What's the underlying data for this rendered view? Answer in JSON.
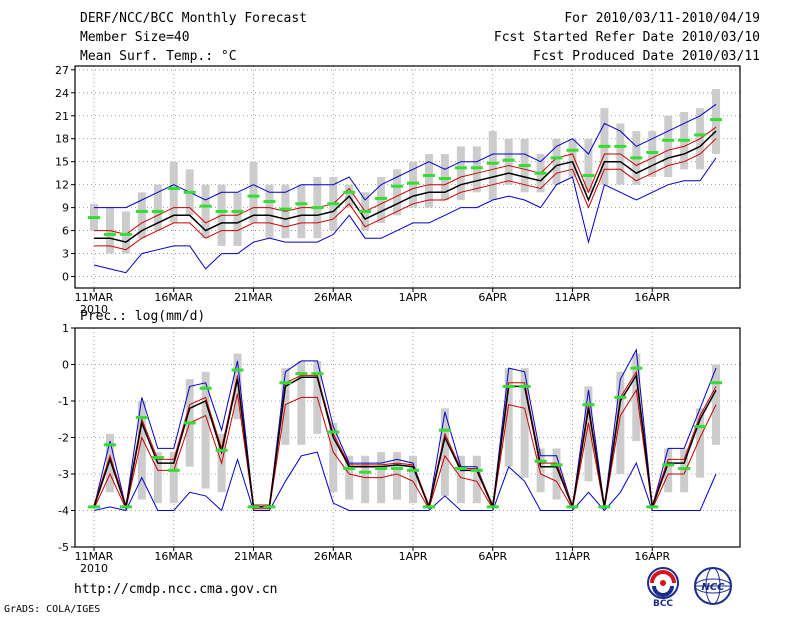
{
  "header": {
    "title": "DERF/NCC/BCC Monthly Forecast",
    "member_size": "Member Size=40",
    "variable": "Mean Surf. Temp.: °C",
    "period": "For 2010/03/11-2010/04/19",
    "started": "Fcst Started Refer Date 2010/03/10",
    "produced": "Fcst Produced Date 2010/03/11"
  },
  "footer": {
    "url": "http://cmdp.ncc.cma.gov.cn",
    "credit": "GrADS: COLA/IGES",
    "logo_bcc": "BCC",
    "logo_ncc": "NCC"
  },
  "colors": {
    "mean": "#000000",
    "outer": "#0000cc",
    "inner": "#cc0000",
    "box": "#cccccc",
    "median": "#33dd33"
  },
  "chart_data": [
    {
      "type": "line",
      "title": "Mean Surf. Temp.: °C",
      "ylim": [
        -1.5,
        27.5
      ],
      "yticks": [
        0,
        3,
        6,
        9,
        12,
        15,
        18,
        21,
        24,
        27
      ],
      "xlabels": [
        "11MAR",
        "16MAR",
        "21MAR",
        "26MAR",
        "1APR",
        "6APR",
        "11APR",
        "16APR"
      ],
      "year_label": "2010",
      "series": [
        {
          "name": "mean",
          "values": [
            5,
            5,
            4.5,
            6,
            7,
            8,
            8,
            6,
            7,
            7,
            8,
            8,
            7.5,
            8,
            8,
            8.5,
            10.5,
            7.5,
            8.5,
            9.5,
            10.5,
            11,
            11,
            12,
            12.5,
            13,
            13.5,
            13,
            12.5,
            14.5,
            15,
            10,
            15,
            15,
            13.5,
            14.5,
            15.5,
            16,
            17,
            19
          ]
        },
        {
          "name": "upper_inner",
          "values": [
            6,
            6,
            5.5,
            7,
            8,
            9,
            9,
            7,
            8,
            8,
            9,
            9,
            8.5,
            9,
            9,
            9.5,
            11.5,
            8.5,
            9.5,
            10.5,
            11.5,
            12,
            12,
            13,
            13.5,
            14,
            14.5,
            14,
            13.5,
            15.5,
            16,
            11,
            16,
            16,
            14.5,
            15.5,
            16.5,
            17,
            18,
            19.5
          ]
        },
        {
          "name": "lower_inner",
          "values": [
            4,
            4,
            3.5,
            5,
            6,
            7,
            7,
            5,
            6,
            6,
            7,
            7,
            6.5,
            7,
            7,
            7.5,
            9.5,
            6.5,
            7.5,
            8.5,
            9.5,
            10,
            10,
            11,
            11.5,
            12,
            12.5,
            12,
            11.5,
            13.5,
            14,
            9,
            14,
            14,
            12.5,
            13.5,
            14.5,
            15,
            16,
            18
          ]
        },
        {
          "name": "upper_outer",
          "values": [
            9,
            9,
            9,
            10,
            11,
            12,
            11,
            10,
            11,
            11,
            12,
            11,
            11,
            12,
            12,
            12,
            13,
            10,
            12,
            13,
            14,
            15,
            14,
            15,
            15,
            16,
            16,
            16,
            15,
            17,
            18,
            16,
            20,
            19,
            17,
            18,
            19,
            20,
            21,
            22.5
          ]
        },
        {
          "name": "lower_outer",
          "values": [
            1.5,
            1,
            0.5,
            3,
            3.5,
            4,
            4,
            1,
            3,
            3,
            4.5,
            5,
            4.5,
            4.5,
            4.5,
            5.5,
            8,
            5,
            5,
            6,
            7,
            7,
            8,
            9,
            9,
            10,
            10.5,
            10,
            9,
            12,
            13,
            4.5,
            12,
            11,
            10,
            11,
            12,
            12.5,
            12.5,
            15.5
          ]
        },
        {
          "name": "box_top",
          "values": [
            9.5,
            9,
            8.5,
            11,
            12,
            15,
            14,
            12,
            12,
            11,
            15,
            12,
            12,
            12,
            13,
            13,
            12,
            11,
            13,
            14,
            15,
            16,
            16,
            17,
            17,
            19,
            18,
            18,
            16,
            18,
            18,
            18,
            22,
            20,
            19,
            19,
            21,
            21.5,
            22,
            24.5
          ]
        },
        {
          "name": "box_bottom",
          "values": [
            6,
            3,
            3,
            5,
            6,
            7,
            8,
            5,
            4,
            4,
            7,
            5,
            5,
            5,
            5,
            6,
            9,
            6,
            7,
            8,
            9,
            9,
            10,
            10,
            11,
            10,
            12,
            11,
            11,
            12,
            13,
            11,
            12,
            12,
            12,
            13,
            13,
            14,
            14,
            16
          ]
        },
        {
          "name": "median",
          "values": [
            7.7,
            5.5,
            5.5,
            8.5,
            8.5,
            11.5,
            11,
            9.2,
            8.5,
            8.5,
            10.5,
            9.8,
            8.8,
            9.5,
            9,
            9.5,
            11,
            8.5,
            10.2,
            11.8,
            12.2,
            13.2,
            12.8,
            14.2,
            14.2,
            14.8,
            15.2,
            14.5,
            13.5,
            15.5,
            16.5,
            13.2,
            17,
            17,
            15.5,
            16.2,
            17.8,
            17.8,
            18.5,
            20.5
          ]
        }
      ]
    },
    {
      "type": "line",
      "title": "Prec.: log(mm/d)",
      "ylim": [
        -5,
        1
      ],
      "yticks": [
        1,
        0,
        -1,
        -2,
        -3,
        -4,
        -5
      ],
      "xlabels": [
        "11MAR",
        "16MAR",
        "21MAR",
        "26MAR",
        "1APR",
        "6APR",
        "11APR",
        "16APR"
      ],
      "year_label": "2010",
      "series": [
        {
          "name": "mean",
          "values": [
            -3.9,
            -2.6,
            -3.9,
            -1.6,
            -2.7,
            -2.7,
            -1.2,
            -1,
            -2.4,
            -0.4,
            -3.9,
            -3.9,
            -0.6,
            -0.35,
            -0.35,
            -2,
            -2.8,
            -2.8,
            -2.8,
            -2.75,
            -2.8,
            -3.9,
            -2,
            -2.9,
            -2.9,
            -3.9,
            -0.6,
            -0.6,
            -2.8,
            -2.8,
            -3.9,
            -1.2,
            -3.9,
            -1,
            -0.3,
            -3.9,
            -2.7,
            -2.7,
            -1.5,
            -0.7
          ]
        },
        {
          "name": "upper_inner",
          "values": [
            -3.85,
            -2.5,
            -3.85,
            -1.5,
            -2.6,
            -2.6,
            -1.1,
            -0.9,
            -2.3,
            -0.3,
            -3.85,
            -3.85,
            -0.5,
            -0.3,
            -0.3,
            -1.9,
            -2.75,
            -2.75,
            -2.75,
            -2.7,
            -2.75,
            -3.85,
            -1.9,
            -2.85,
            -2.85,
            -3.85,
            -0.5,
            -0.5,
            -2.7,
            -2.7,
            -3.85,
            -1.1,
            -3.85,
            -0.9,
            -0.2,
            -3.85,
            -2.6,
            -2.6,
            -1.4,
            -0.6
          ]
        },
        {
          "name": "lower_inner",
          "values": [
            -3.95,
            -3,
            -3.95,
            -2,
            -2.9,
            -2.9,
            -1.6,
            -1.4,
            -2.7,
            -0.8,
            -3.95,
            -3.95,
            -1.1,
            -0.9,
            -0.9,
            -2.4,
            -3,
            -3.1,
            -3.1,
            -3,
            -3.2,
            -3.95,
            -2.5,
            -3.1,
            -3.2,
            -3.95,
            -1.1,
            -1.2,
            -3,
            -3.2,
            -3.95,
            -1.6,
            -3.95,
            -1.4,
            -0.7,
            -3.95,
            -3,
            -3,
            -2,
            -1.1
          ]
        },
        {
          "name": "upper_outer",
          "values": [
            -3.9,
            -2.1,
            -3.9,
            -0.9,
            -2.3,
            -2.3,
            -0.6,
            -0.5,
            -1.8,
            0.1,
            -3.9,
            -3.9,
            -0.2,
            0.1,
            0.1,
            -1.7,
            -2.7,
            -2.7,
            -2.7,
            -2.6,
            -2.7,
            -3.9,
            -1.3,
            -2.8,
            -2.8,
            -3.9,
            -0.1,
            -0.2,
            -2.5,
            -2.5,
            -3.9,
            -0.7,
            -3.9,
            -0.4,
            0.4,
            -3.9,
            -2.3,
            -2.3,
            -1.2,
            -0.1
          ]
        },
        {
          "name": "lower_outer",
          "values": [
            -4,
            -3.9,
            -4,
            -3.1,
            -4,
            -4,
            -3.5,
            -3.6,
            -4,
            -2.6,
            -4,
            -4,
            -3.2,
            -2.5,
            -2.4,
            -3.8,
            -4,
            -4,
            -4,
            -4,
            -4,
            -4,
            -3.6,
            -4,
            -4,
            -4,
            -2.8,
            -3.2,
            -4,
            -4,
            -4,
            -3.5,
            -4,
            -3.5,
            -2.7,
            -4,
            -4,
            -4,
            -4,
            -3
          ]
        },
        {
          "name": "box_top",
          "values": [
            -3.9,
            -1.9,
            -3.9,
            -1,
            -2.4,
            -2.4,
            -0.4,
            -0.2,
            -1.9,
            0.3,
            -3.9,
            -3.9,
            -0.1,
            0.1,
            0.1,
            -1.6,
            -2.5,
            -2.5,
            -2.4,
            -2.4,
            -2.5,
            -3.9,
            -1.2,
            -2.5,
            -2.5,
            -3.9,
            -0.1,
            -0.1,
            -2.3,
            -2.3,
            -3.9,
            -0.6,
            -3.9,
            -0.2,
            0.3,
            -3.9,
            -2.3,
            -2.3,
            -1.2,
            0
          ]
        },
        {
          "name": "box_bottom",
          "values": [
            -3.9,
            -3.5,
            -3.9,
            -3.7,
            -3.8,
            -3.8,
            -2.8,
            -3.4,
            -3.5,
            -1.5,
            -3.9,
            -3.9,
            -2.2,
            -2.2,
            -1.9,
            -3.5,
            -3.7,
            -3.8,
            -3.8,
            -3.7,
            -3.8,
            -3.9,
            -3.6,
            -3.8,
            -3.8,
            -3.9,
            -2.8,
            -3.1,
            -3.5,
            -3.7,
            -3.9,
            -3.2,
            -3.9,
            -3,
            -2.1,
            -3.9,
            -3.5,
            -3.5,
            -3.1,
            -2.2
          ]
        },
        {
          "name": "median",
          "values": [
            -3.9,
            -2.2,
            -3.9,
            -1.45,
            -2.55,
            -2.9,
            -1.6,
            -0.65,
            -2.35,
            -0.15,
            -3.9,
            -3.9,
            -0.5,
            -0.25,
            -0.25,
            -1.85,
            -2.85,
            -2.95,
            -2.85,
            -2.85,
            -2.9,
            -3.9,
            -1.8,
            -2.85,
            -2.9,
            -3.9,
            -0.6,
            -0.6,
            -2.65,
            -2.75,
            -3.9,
            -1.1,
            -3.9,
            -0.9,
            -0.1,
            -3.9,
            -2.75,
            -2.85,
            -1.7,
            -0.5
          ]
        }
      ]
    }
  ]
}
